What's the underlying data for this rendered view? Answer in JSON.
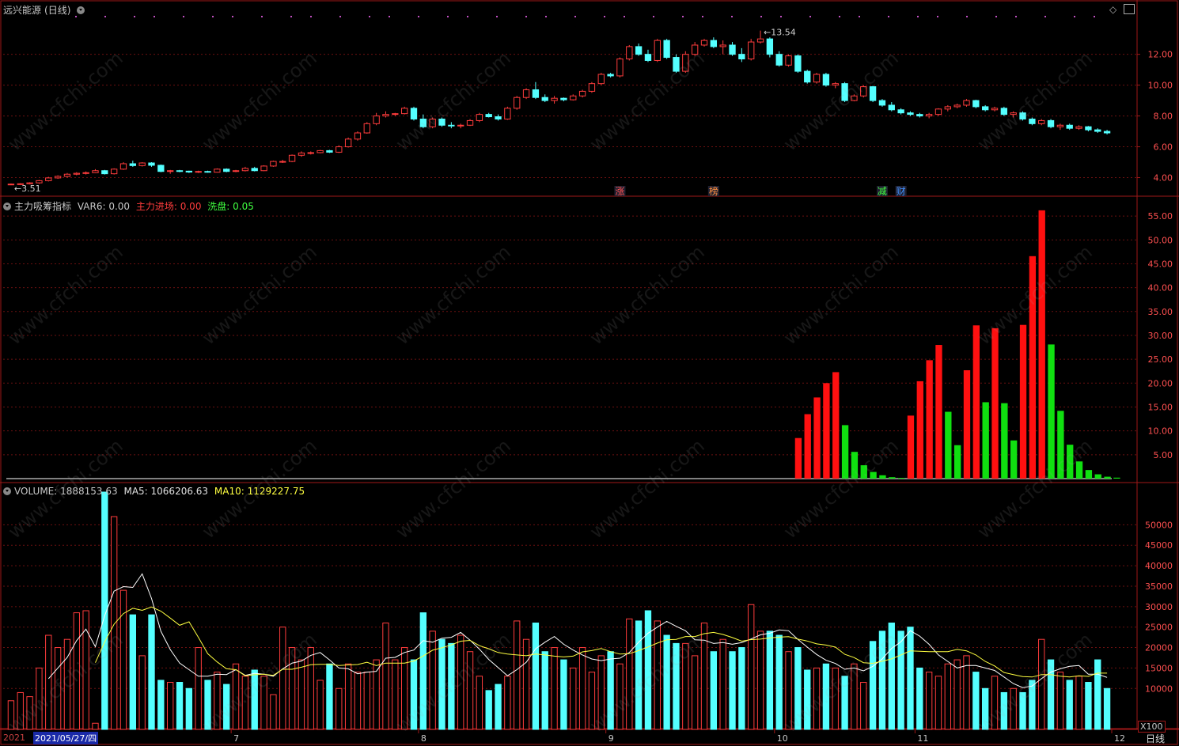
{
  "stock": {
    "name": "远兴能源",
    "period": "(日线)",
    "period_button": "日线"
  },
  "price_panel": {
    "high_label": "13.54",
    "low_label": "3.51",
    "y_ticks": [
      "12.00",
      "10.00",
      "8.00",
      "6.00",
      "4.00"
    ],
    "y_range": [
      3.0,
      14.6
    ],
    "event_marks": [
      {
        "text": "涨",
        "color": "#ff5050",
        "index": 65
      },
      {
        "text": "榜",
        "color": "#ff9040",
        "index": 75
      },
      {
        "text": "减",
        "color": "#40ff40",
        "index": 93
      },
      {
        "text": "财",
        "color": "#4090ff",
        "index": 95
      }
    ]
  },
  "indicator_panel": {
    "title": "主力吸筹指标",
    "var6_label": "VAR6: 0.00",
    "main_in_label": "主力进场: 0.00",
    "wash_label": "洗盘: 0.05",
    "y_ticks": [
      "55.00",
      "50.00",
      "45.00",
      "40.00",
      "35.00",
      "30.00",
      "25.00",
      "20.00",
      "15.00",
      "10.00",
      "5.00"
    ]
  },
  "volume_panel": {
    "volume_label": "VOLUME: 1888153.63",
    "ma5_label": "MA5: 1066206.63",
    "ma10_label": "MA10: 1129227.75",
    "y_ticks": [
      "50000",
      "45000",
      "40000",
      "35000",
      "30000",
      "25000",
      "20000",
      "15000",
      "10000"
    ],
    "unit": "X100"
  },
  "x_axis": {
    "date_prefix": "2021",
    "selected_date": "2021/05/27/四",
    "month_labels": [
      {
        "text": "7",
        "index": 24
      },
      {
        "text": "8",
        "index": 44
      },
      {
        "text": "9",
        "index": 64
      },
      {
        "text": "10",
        "index": 82
      },
      {
        "text": "11",
        "index": 97
      },
      {
        "text": "12",
        "index": 118
      }
    ]
  },
  "colors": {
    "up": "#ff3c3c",
    "down": "#54ffff",
    "grid": "#6b1010",
    "border": "#a01818",
    "ma5": "#ffffff",
    "ma10": "#ffff40",
    "ind_red": "#ff1010",
    "ind_green": "#10e010"
  },
  "watermark": "www.cfchi.com",
  "chart_data": {
    "type": "candlestick",
    "ohlc": [
      [
        3.55,
        3.62,
        3.51,
        3.58
      ],
      [
        3.58,
        3.64,
        3.53,
        3.6
      ],
      [
        3.6,
        3.7,
        3.56,
        3.66
      ],
      [
        3.66,
        3.85,
        3.6,
        3.8
      ],
      [
        3.8,
        4.05,
        3.75,
        3.98
      ],
      [
        3.98,
        4.15,
        3.92,
        4.08
      ],
      [
        4.08,
        4.3,
        4.0,
        4.22
      ],
      [
        4.22,
        4.35,
        4.15,
        4.28
      ],
      [
        4.28,
        4.4,
        4.2,
        4.32
      ],
      [
        4.32,
        4.55,
        4.3,
        4.45
      ],
      [
        4.45,
        4.5,
        4.2,
        4.25
      ],
      [
        4.25,
        4.6,
        4.2,
        4.55
      ],
      [
        4.55,
        5.0,
        4.5,
        4.9
      ],
      [
        4.9,
        5.1,
        4.7,
        4.78
      ],
      [
        4.78,
        5.0,
        4.72,
        4.95
      ],
      [
        4.95,
        5.0,
        4.7,
        4.8
      ],
      [
        4.8,
        4.85,
        4.35,
        4.4
      ],
      [
        4.4,
        4.5,
        4.25,
        4.45
      ],
      [
        4.45,
        4.5,
        4.35,
        4.42
      ],
      [
        4.42,
        4.45,
        4.3,
        4.36
      ],
      [
        4.36,
        4.45,
        4.3,
        4.4
      ],
      [
        4.4,
        4.45,
        4.32,
        4.35
      ],
      [
        4.35,
        4.6,
        4.33,
        4.55
      ],
      [
        4.55,
        4.6,
        4.35,
        4.4
      ],
      [
        4.4,
        4.5,
        4.35,
        4.45
      ],
      [
        4.45,
        4.7,
        4.4,
        4.6
      ],
      [
        4.6,
        4.7,
        4.4,
        4.45
      ],
      [
        4.45,
        4.8,
        4.42,
        4.75
      ],
      [
        4.75,
        5.1,
        4.7,
        5.05
      ],
      [
        5.05,
        5.15,
        4.95,
        5.05
      ],
      [
        5.05,
        5.5,
        5.0,
        5.45
      ],
      [
        5.45,
        5.7,
        5.35,
        5.6
      ],
      [
        5.6,
        5.7,
        5.5,
        5.62
      ],
      [
        5.62,
        5.8,
        5.58,
        5.75
      ],
      [
        5.75,
        5.8,
        5.6,
        5.65
      ],
      [
        5.65,
        6.1,
        5.6,
        6.0
      ],
      [
        6.0,
        6.6,
        5.95,
        6.5
      ],
      [
        6.5,
        7.0,
        6.4,
        6.9
      ],
      [
        6.9,
        7.6,
        6.85,
        7.5
      ],
      [
        7.5,
        8.2,
        7.4,
        8.0
      ],
      [
        8.0,
        8.3,
        7.9,
        8.1
      ],
      [
        8.1,
        8.2,
        8.0,
        8.15
      ],
      [
        8.15,
        8.6,
        8.1,
        8.5
      ],
      [
        8.5,
        8.6,
        7.7,
        7.8
      ],
      [
        7.8,
        8.1,
        7.2,
        7.3
      ],
      [
        7.3,
        7.9,
        7.2,
        7.8
      ],
      [
        7.8,
        7.9,
        7.3,
        7.4
      ],
      [
        7.4,
        7.6,
        7.2,
        7.35
      ],
      [
        7.35,
        7.5,
        7.2,
        7.4
      ],
      [
        7.4,
        7.8,
        7.35,
        7.7
      ],
      [
        7.7,
        8.2,
        7.6,
        8.1
      ],
      [
        8.1,
        8.2,
        7.9,
        7.95
      ],
      [
        7.95,
        8.1,
        7.7,
        7.8
      ],
      [
        7.8,
        8.6,
        7.75,
        8.5
      ],
      [
        8.5,
        9.3,
        8.4,
        9.2
      ],
      [
        9.2,
        9.8,
        9.1,
        9.7
      ],
      [
        9.7,
        10.2,
        9.1,
        9.2
      ],
      [
        9.2,
        9.4,
        8.9,
        9.0
      ],
      [
        9.0,
        9.3,
        8.8,
        9.15
      ],
      [
        9.15,
        9.2,
        8.95,
        9.05
      ],
      [
        9.05,
        9.4,
        9.0,
        9.3
      ],
      [
        9.3,
        9.7,
        9.2,
        9.6
      ],
      [
        9.6,
        10.2,
        9.5,
        10.1
      ],
      [
        10.1,
        10.8,
        10.0,
        10.7
      ],
      [
        10.7,
        10.8,
        10.5,
        10.6
      ],
      [
        10.6,
        11.8,
        10.5,
        11.7
      ],
      [
        11.7,
        12.6,
        11.6,
        12.5
      ],
      [
        12.5,
        12.7,
        11.9,
        12.0
      ],
      [
        12.0,
        12.3,
        11.5,
        11.6
      ],
      [
        11.6,
        13.0,
        11.5,
        12.9
      ],
      [
        12.9,
        13.0,
        11.7,
        11.8
      ],
      [
        11.8,
        12.0,
        10.8,
        10.9
      ],
      [
        10.9,
        12.2,
        10.8,
        12.0
      ],
      [
        12.0,
        12.8,
        11.9,
        12.6
      ],
      [
        12.6,
        13.0,
        12.5,
        12.9
      ],
      [
        12.9,
        13.1,
        12.4,
        12.5
      ],
      [
        12.5,
        12.9,
        12.0,
        12.6
      ],
      [
        12.6,
        12.8,
        11.9,
        12.0
      ],
      [
        12.0,
        12.4,
        11.5,
        11.7
      ],
      [
        11.7,
        13.0,
        11.6,
        12.8
      ],
      [
        12.8,
        13.54,
        12.7,
        13.0
      ],
      [
        13.0,
        13.1,
        11.8,
        12.0
      ],
      [
        12.0,
        12.2,
        11.2,
        11.3
      ],
      [
        11.3,
        12.0,
        11.2,
        11.9
      ],
      [
        11.9,
        12.0,
        10.8,
        10.9
      ],
      [
        10.9,
        11.0,
        10.1,
        10.2
      ],
      [
        10.2,
        10.8,
        10.1,
        10.7
      ],
      [
        10.7,
        10.8,
        9.9,
        10.0
      ],
      [
        10.0,
        10.2,
        9.8,
        10.1
      ],
      [
        10.1,
        10.2,
        8.9,
        9.0
      ],
      [
        9.0,
        9.4,
        8.95,
        9.3
      ],
      [
        9.3,
        10.0,
        9.2,
        9.9
      ],
      [
        9.9,
        9.95,
        8.9,
        9.0
      ],
      [
        9.0,
        9.1,
        8.6,
        8.7
      ],
      [
        8.7,
        8.9,
        8.3,
        8.4
      ],
      [
        8.4,
        8.5,
        8.1,
        8.2
      ],
      [
        8.2,
        8.3,
        8.0,
        8.1
      ],
      [
        8.1,
        8.2,
        7.9,
        8.0
      ],
      [
        8.0,
        8.2,
        7.85,
        8.1
      ],
      [
        8.1,
        8.5,
        8.0,
        8.45
      ],
      [
        8.45,
        8.7,
        8.3,
        8.6
      ],
      [
        8.6,
        8.8,
        8.5,
        8.7
      ],
      [
        8.7,
        9.1,
        8.6,
        9.0
      ],
      [
        9.0,
        9.05,
        8.5,
        8.6
      ],
      [
        8.6,
        8.7,
        8.3,
        8.4
      ],
      [
        8.4,
        8.6,
        8.3,
        8.5
      ],
      [
        8.5,
        8.6,
        8.0,
        8.1
      ],
      [
        8.1,
        8.3,
        7.9,
        8.2
      ],
      [
        8.2,
        8.3,
        7.7,
        7.8
      ],
      [
        7.8,
        7.9,
        7.4,
        7.5
      ],
      [
        7.5,
        7.8,
        7.4,
        7.7
      ],
      [
        7.7,
        7.8,
        7.2,
        7.3
      ],
      [
        7.3,
        7.5,
        7.1,
        7.4
      ],
      [
        7.4,
        7.5,
        7.1,
        7.2
      ],
      [
        7.2,
        7.4,
        7.1,
        7.3
      ],
      [
        7.3,
        7.35,
        7.0,
        7.1
      ],
      [
        7.1,
        7.2,
        6.9,
        7.0
      ],
      [
        7.0,
        7.1,
        6.8,
        6.9
      ]
    ],
    "indicator": {
      "var6": 0.0,
      "main_in": 0.0,
      "wash": 0.05
    },
    "y_ticks_price": [
      12,
      10,
      8,
      6,
      4
    ]
  }
}
